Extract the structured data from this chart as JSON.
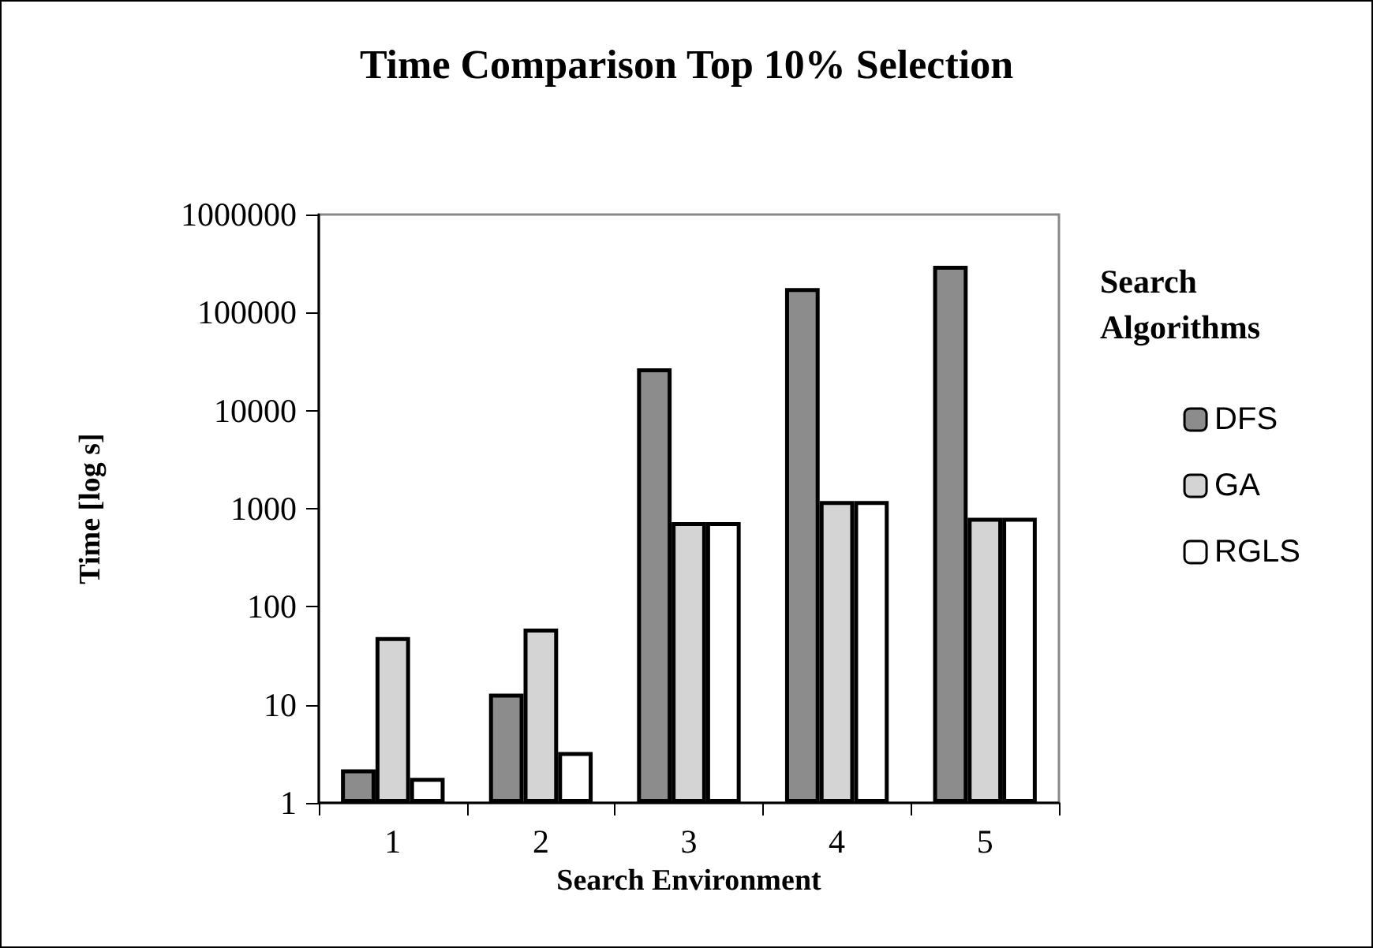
{
  "chart_data": {
    "type": "bar",
    "title": "Time Comparison Top 10% Selection",
    "xlabel": "Search Environment",
    "ylabel": "Time [log s]",
    "legend_title": "Search Algorithms",
    "categories": [
      "1",
      "2",
      "3",
      "4",
      "5"
    ],
    "series": [
      {
        "name": "DFS",
        "color": "#8c8c8c",
        "values": [
          2.2,
          13,
          27000,
          178000,
          300000
        ]
      },
      {
        "name": "GA",
        "color": "#d4d4d4",
        "values": [
          49,
          60,
          730,
          1200,
          810
        ]
      },
      {
        "name": "RGLS",
        "color": "#ffffff",
        "values": [
          1.8,
          3.3,
          730,
          1200,
          810
        ]
      }
    ],
    "log": "y",
    "ylim": [
      1,
      1000000
    ],
    "yticks": [
      1,
      10,
      100,
      1000,
      10000,
      100000,
      1000000
    ],
    "grid": false,
    "legend": "right"
  }
}
